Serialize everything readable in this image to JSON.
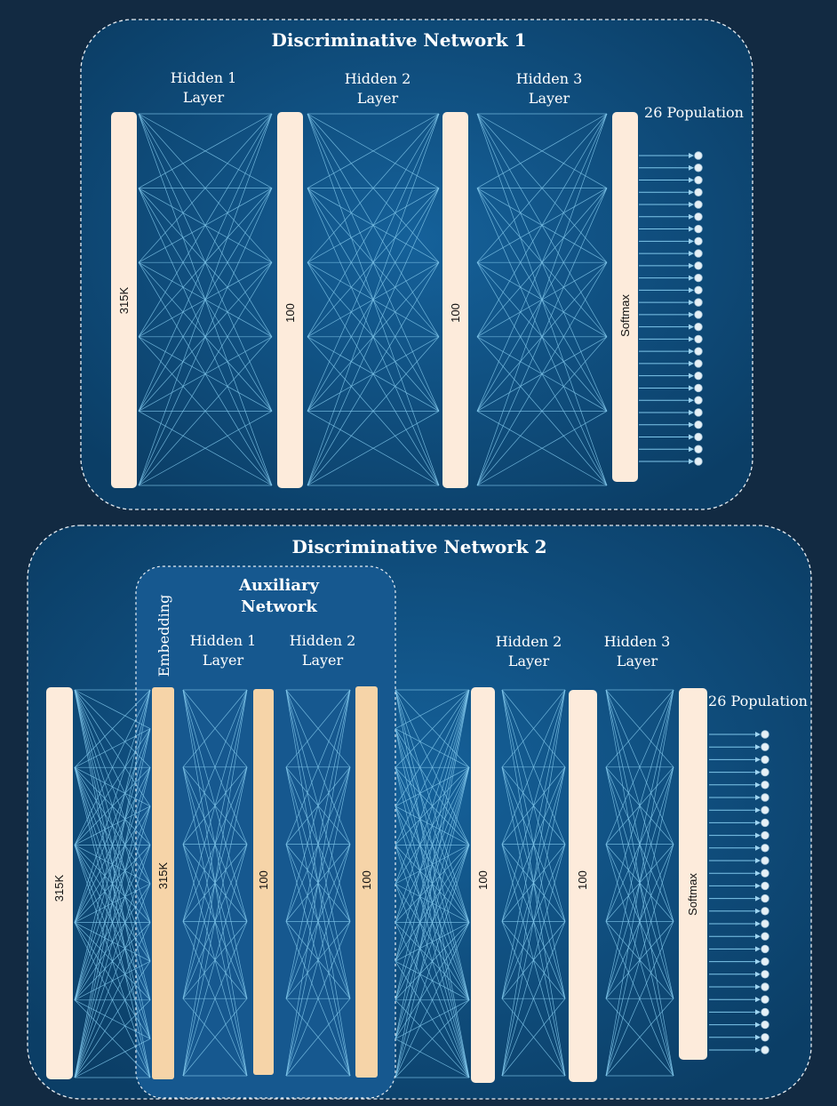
{
  "network1": {
    "title": "Discriminative Network 1",
    "headers": {
      "hidden1_line1": "Hidden 1",
      "hidden1_line2": "Layer",
      "hidden2_line1": "Hidden 2",
      "hidden2_line2": "Layer",
      "hidden3_line1": "Hidden 3",
      "hidden3_line2": "Layer",
      "population": "26 Population"
    },
    "bars": {
      "input": "315K",
      "h1": "100",
      "h2": "100",
      "softmax": "Softmax"
    },
    "output_nodes": 26
  },
  "network2": {
    "title": "Discriminative Network 2",
    "auxiliary": {
      "title_line1": "Auxiliary",
      "title_line2": "Network",
      "embedding": "Embedding",
      "hidden1_line1": "Hidden 1",
      "hidden1_line2": "Layer",
      "hidden2_line1": "Hidden 2",
      "hidden2_line2": "Layer",
      "bars": {
        "embedding": "315K",
        "h1": "100",
        "h2": "100"
      }
    },
    "headers": {
      "hidden2_line1": "Hidden 2",
      "hidden2_line2": "Layer",
      "hidden3_line1": "Hidden 3",
      "hidden3_line2": "Layer",
      "population": "26 Population"
    },
    "bars": {
      "input": "315K",
      "h2": "100",
      "h3": "100",
      "softmax": "Softmax"
    },
    "output_nodes": 26
  },
  "colors": {
    "background": "#122a42",
    "panel": "#0f4a78",
    "aux_panel": "#16588f",
    "bar": "#fdebdb",
    "aux_bar": "#f6d4a8",
    "connections": "#7fc6ea"
  }
}
